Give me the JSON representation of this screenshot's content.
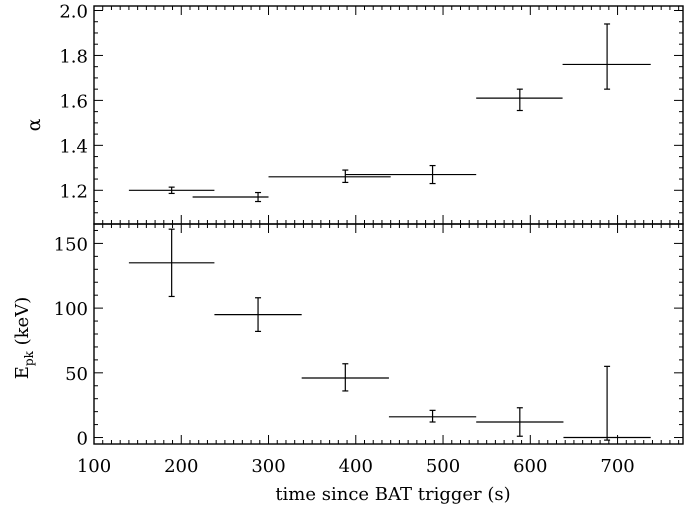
{
  "chart_data": [
    {
      "type": "scatter",
      "panel": "top",
      "ylabel": "α",
      "ylim": [
        1.05,
        2.02
      ],
      "yticks": [
        1.2,
        1.4,
        1.6,
        1.8,
        2.0
      ],
      "ytick_labels": [
        "1.2",
        "1.4",
        "1.6",
        "1.8",
        "2.0"
      ],
      "y_minor_step": 0.05,
      "xlim": [
        100,
        775
      ],
      "points": [
        {
          "x": 189,
          "xlo": 140,
          "xhi": 238,
          "y": 1.2,
          "ylo": 1.186,
          "yhi": 1.214
        },
        {
          "x": 288,
          "xlo": 213,
          "xhi": 300,
          "y": 1.17,
          "ylo": 1.15,
          "yhi": 1.19
        },
        {
          "x": 388,
          "xlo": 300,
          "xhi": 440,
          "y": 1.26,
          "ylo": 1.235,
          "yhi": 1.29
        },
        {
          "x": 488,
          "xlo": 388,
          "xhi": 538,
          "y": 1.27,
          "ylo": 1.23,
          "yhi": 1.31
        },
        {
          "x": 588,
          "xlo": 538,
          "xhi": 637,
          "y": 1.61,
          "ylo": 1.555,
          "yhi": 1.65
        },
        {
          "x": 688,
          "xlo": 637,
          "xhi": 738,
          "y": 1.76,
          "ylo": 1.65,
          "yhi": 1.94
        }
      ]
    },
    {
      "type": "scatter",
      "panel": "bottom",
      "ylabel_main": "E",
      "ylabel_sub": "pk",
      "ylabel_unit": " (keV)",
      "ylim": [
        -5,
        165
      ],
      "yticks": [
        0,
        50,
        100,
        150
      ],
      "ytick_labels": [
        "0",
        "50",
        "100",
        "150"
      ],
      "y_minor_step": 10,
      "xlim": [
        100,
        775
      ],
      "xticks": [
        100,
        200,
        300,
        400,
        500,
        600,
        700
      ],
      "xtick_labels": [
        "100",
        "200",
        "300",
        "400",
        "500",
        "600",
        "700"
      ],
      "x_minor_step": 10,
      "xlabel": "time since BAT trigger (s)",
      "points": [
        {
          "x": 189,
          "xlo": 140,
          "xhi": 238,
          "y": 135,
          "ylo": 109,
          "yhi": 161
        },
        {
          "x": 288,
          "xlo": 238,
          "xhi": 338,
          "y": 95,
          "ylo": 82,
          "yhi": 108
        },
        {
          "x": 388,
          "xlo": 338,
          "xhi": 438,
          "y": 46,
          "ylo": 36,
          "yhi": 57
        },
        {
          "x": 488,
          "xlo": 438,
          "xhi": 538,
          "y": 16,
          "ylo": 12,
          "yhi": 21
        },
        {
          "x": 588,
          "xlo": 538,
          "xhi": 638,
          "y": 12,
          "ylo": 1,
          "yhi": 23
        },
        {
          "x": 688,
          "xlo": 638,
          "xhi": 738,
          "y": 0,
          "ylo": -2,
          "yhi": 55
        }
      ]
    }
  ]
}
